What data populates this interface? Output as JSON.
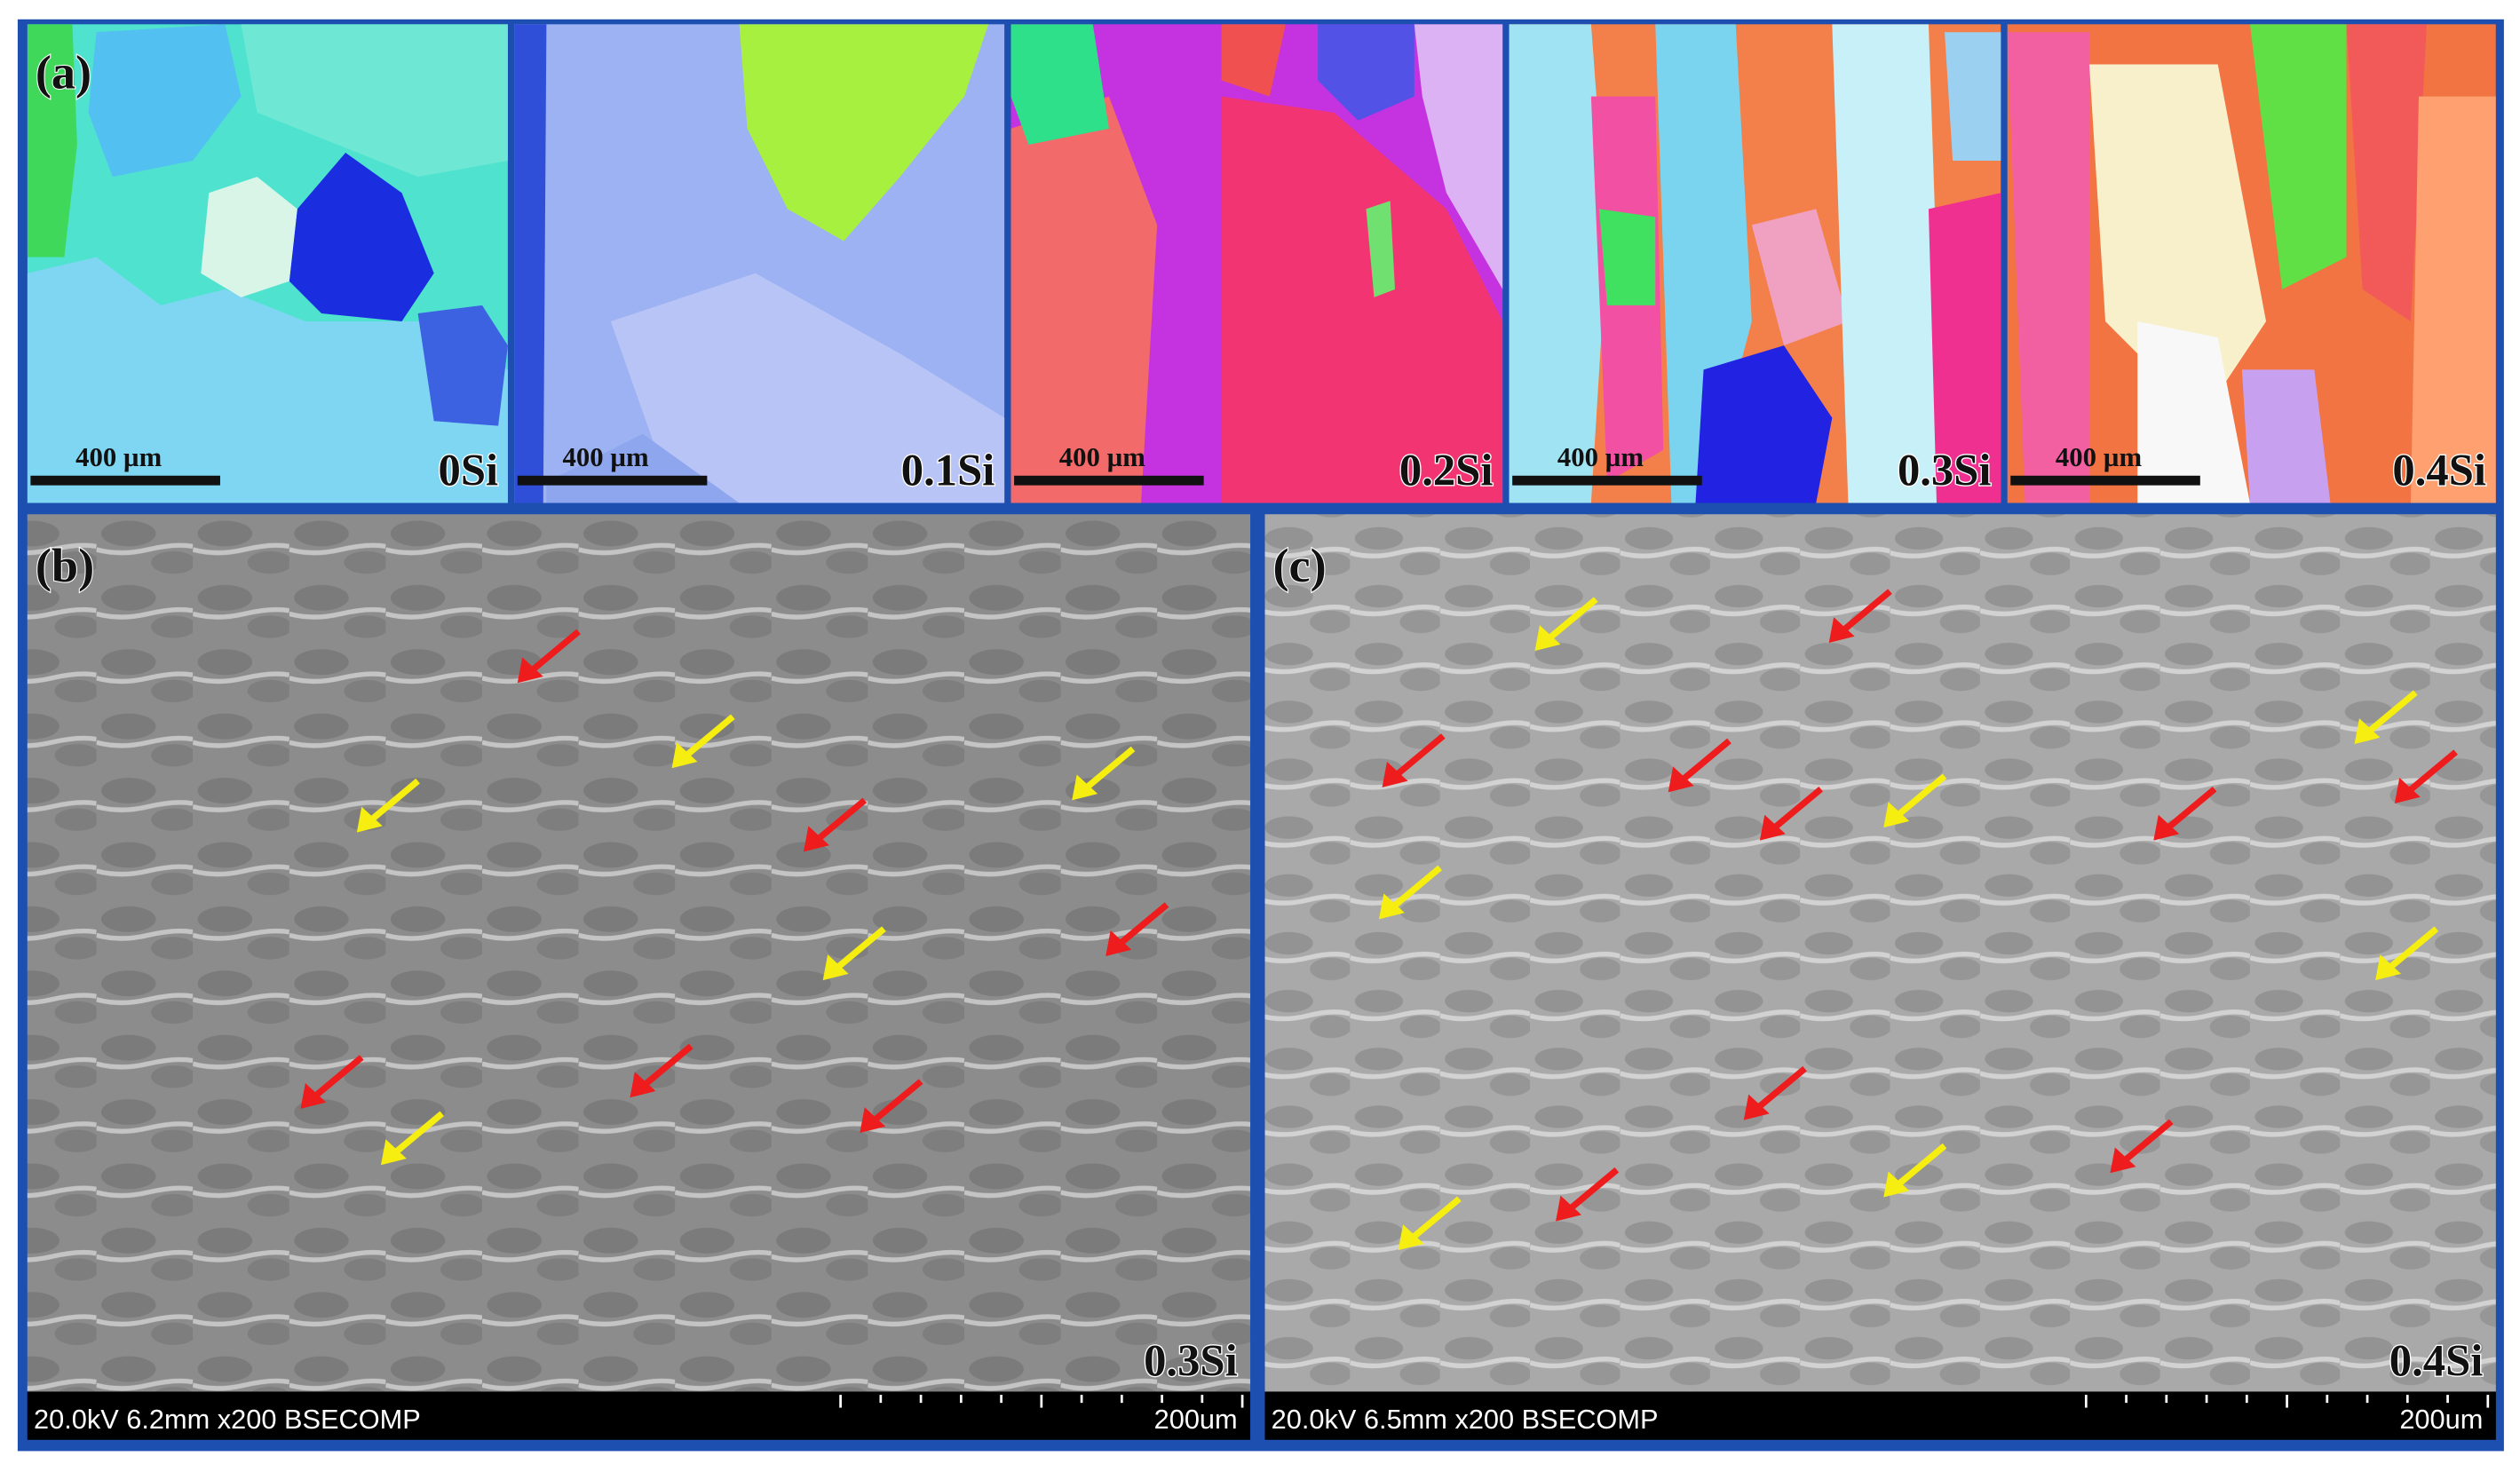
{
  "panels": [
    {
      "label": "(a)",
      "images": [
        {
          "scale_bar": "400 µm",
          "composition": "0Si"
        },
        {
          "scale_bar": "400 µm",
          "composition": "0.1Si"
        },
        {
          "scale_bar": "400 µm",
          "composition": "0.2Si"
        },
        {
          "scale_bar": "400 µm",
          "composition": "0.3Si"
        },
        {
          "scale_bar": "400 µm",
          "composition": "0.4Si"
        }
      ]
    },
    {
      "label": "(b)",
      "composition": "0.3Si",
      "info": "20.0kV 6.2mm x200 BSECOMP",
      "scale_bar": "200um"
    },
    {
      "label": "(c)",
      "composition": "0.4Si",
      "info": "20.0kV 6.5mm x200 BSECOMP",
      "scale_bar": "200um"
    }
  ]
}
